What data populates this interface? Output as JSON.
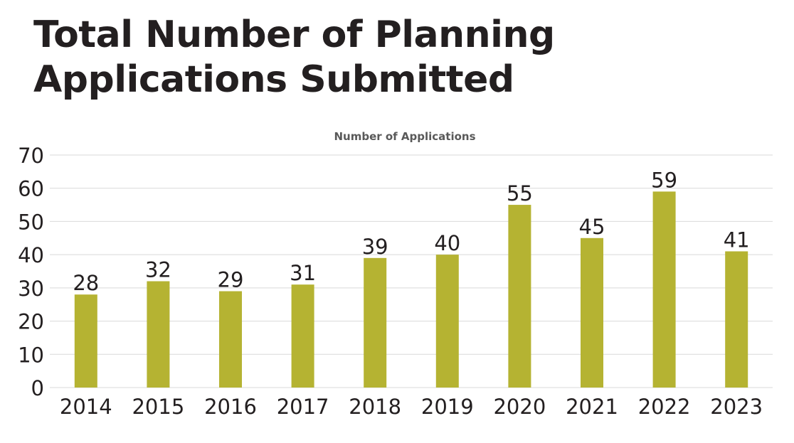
{
  "title": "Total Number of Planning Applications Submitted",
  "chart_data": {
    "type": "bar",
    "title": "Number of Applications",
    "categories": [
      "2014",
      "2015",
      "2016",
      "2017",
      "2018",
      "2019",
      "2020",
      "2021",
      "2022",
      "2023"
    ],
    "values": [
      28,
      32,
      29,
      31,
      39,
      40,
      55,
      45,
      59,
      41
    ],
    "data_labels": [
      "28",
      "32",
      "29",
      "31",
      "39",
      "40",
      "55",
      "45",
      "59",
      "41"
    ],
    "xlabel": "",
    "ylabel": "",
    "ylim": [
      0,
      70
    ],
    "yticks": [
      "0",
      "10",
      "20",
      "30",
      "40",
      "50",
      "60",
      "70"
    ],
    "grid": true,
    "legend": "none",
    "bar_color": "#b5b332"
  }
}
